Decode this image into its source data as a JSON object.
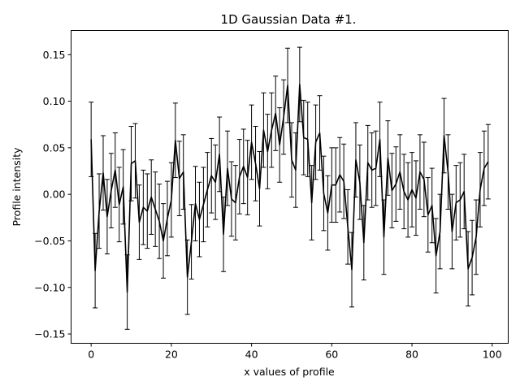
{
  "chart_data": {
    "type": "line",
    "title": "1D Gaussian Data #1.",
    "xlabel": "x values of profile",
    "ylabel": "Profile intensity",
    "xlim": [
      -5,
      104
    ],
    "ylim": [
      -0.16,
      0.176
    ],
    "xticks": [
      0,
      20,
      40,
      60,
      80,
      100
    ],
    "yticks": [
      -0.15,
      -0.1,
      -0.05,
      0.0,
      0.05,
      0.1,
      0.15
    ],
    "ytick_labels": [
      "−0.15",
      "−0.10",
      "−0.05",
      "0.00",
      "0.05",
      "0.10",
      "0.15"
    ],
    "grid": false,
    "legend": "none",
    "series": [
      {
        "line_color": "#000000",
        "errorbars": true,
        "error": 0.04,
        "x": [
          0,
          1,
          2,
          3,
          4,
          5,
          6,
          7,
          8,
          9,
          10,
          11,
          12,
          13,
          14,
          15,
          16,
          17,
          18,
          19,
          20,
          21,
          22,
          23,
          24,
          25,
          26,
          27,
          28,
          29,
          30,
          31,
          32,
          33,
          34,
          35,
          36,
          37,
          38,
          39,
          40,
          41,
          42,
          43,
          44,
          45,
          46,
          47,
          48,
          49,
          50,
          51,
          52,
          53,
          54,
          55,
          56,
          57,
          58,
          59,
          60,
          61,
          62,
          63,
          64,
          65,
          66,
          67,
          68,
          69,
          70,
          71,
          72,
          73,
          74,
          75,
          76,
          77,
          78,
          79,
          80,
          81,
          82,
          83,
          84,
          85,
          86,
          87,
          88,
          89,
          90,
          91,
          92,
          93,
          94,
          95,
          96,
          97,
          98,
          99
        ],
        "y": [
          0.059,
          -0.082,
          -0.018,
          0.023,
          -0.024,
          0.004,
          0.026,
          -0.011,
          0.008,
          -0.105,
          0.033,
          0.036,
          -0.03,
          -0.014,
          -0.018,
          -0.003,
          -0.016,
          -0.029,
          -0.05,
          -0.026,
          -0.006,
          0.058,
          0.017,
          0.024,
          -0.089,
          -0.051,
          -0.01,
          -0.027,
          -0.011,
          0.005,
          0.02,
          0.013,
          0.043,
          -0.043,
          0.028,
          -0.005,
          -0.009,
          0.019,
          0.03,
          0.018,
          0.056,
          0.033,
          0.006,
          0.069,
          0.046,
          0.069,
          0.087,
          0.053,
          0.083,
          0.117,
          0.037,
          0.026,
          0.118,
          0.061,
          0.059,
          -0.009,
          0.056,
          0.066,
          0.001,
          -0.02,
          0.01,
          0.01,
          0.021,
          0.014,
          -0.035,
          -0.081,
          0.037,
          0.013,
          -0.052,
          0.034,
          0.026,
          0.028,
          0.059,
          -0.046,
          0.039,
          0.004,
          0.011,
          0.024,
          0.003,
          -0.006,
          0.005,
          -0.004,
          0.024,
          0.016,
          -0.022,
          -0.012,
          -0.066,
          -0.04,
          0.063,
          0.024,
          -0.04,
          -0.009,
          -0.006,
          0.003,
          -0.08,
          -0.068,
          -0.046,
          0.005,
          0.028,
          0.035
        ]
      }
    ]
  }
}
